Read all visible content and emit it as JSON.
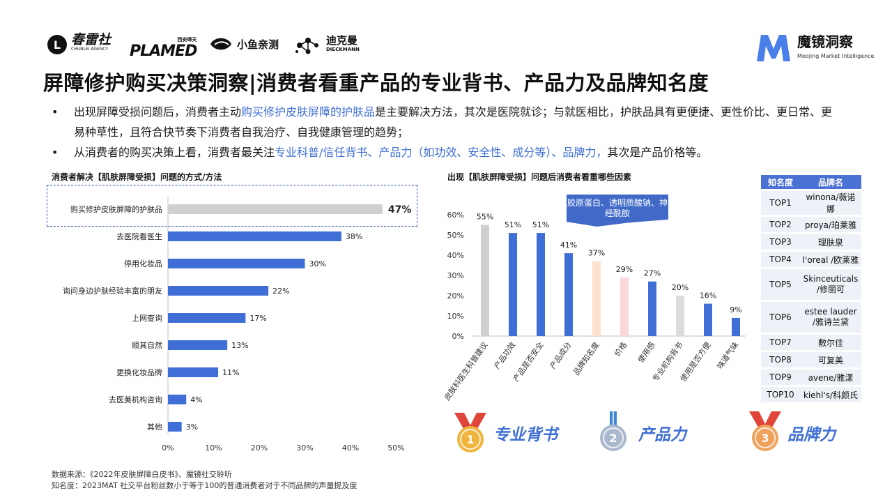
{
  "header": {
    "logos": [
      "春雷社",
      "CHUNLEI AGENCY",
      "PLAMED",
      "西安缔天",
      "小鱼亲测",
      "迪克曼",
      "DIECKMANN"
    ],
    "brand_name": "魔镜洞察",
    "brand_sub": "Moojing Market Intelligence"
  },
  "title": "屏障修护购买决策洞察|消费者看重产品的专业背书、产品力及品牌知名度",
  "bullets": {
    "b1_pre": "出现屏障受损问题后，消费者主动",
    "b1_hl": "购买修护皮肤屏障的护肤品",
    "b1_post": "是主要解决方法，其次是医院就诊；与就医相比，护肤品具有更便捷、更性价比、更日常、更易种草性，且符合快节奏下消费者自我治疗、自我健康管理的趋势；",
    "b2_pre": "从消费者的购买决策上看，消费者最关注",
    "b2_hl": "专业科普/信任背书、产品力（如功效、安全性、成分等）、品牌力，",
    "b2_post": "其次是产品价格等。"
  },
  "chart_data": [
    {
      "type": "bar",
      "orientation": "horizontal",
      "title": "消费者解决【肌肤屏障受损】问题的方式/方法",
      "categories": [
        "购买修护皮肤屏障的护肤品",
        "去医院看医生",
        "停用化妆品",
        "询问身边护肤经验丰富的朋友",
        "上网查询",
        "顺其自然",
        "更换化妆品牌",
        "去医美机构咨询",
        "其他"
      ],
      "values": [
        47,
        38,
        30,
        22,
        17,
        13,
        11,
        4,
        3
      ],
      "value_labels": [
        "47%",
        "38%",
        "30%",
        "22%",
        "17%",
        "13%",
        "11%",
        "4%",
        "3%"
      ],
      "xlim": [
        0,
        50
      ],
      "x_ticks": [
        "0%",
        "10%",
        "20%",
        "30%",
        "40%",
        "50%"
      ],
      "colors": [
        "#d0d0d0",
        "#3f6fd6",
        "#3f6fd6",
        "#3f6fd6",
        "#3f6fd6",
        "#3f6fd6",
        "#3f6fd6",
        "#3f6fd6",
        "#3f6fd6"
      ]
    },
    {
      "type": "bar",
      "orientation": "vertical",
      "title": "出现【肌肤屏障受损】问题后消费者看重哪些因素",
      "categories": [
        "皮肤科医生科普建议",
        "产品功效",
        "产品是否安全",
        "产品成分",
        "品牌知名度",
        "价格",
        "使用感",
        "专业机构背书",
        "使用是否方便",
        "味道气味"
      ],
      "values": [
        55,
        51,
        51,
        41,
        37,
        29,
        27,
        20,
        16,
        9
      ],
      "value_labels": [
        "55%",
        "51%",
        "51%",
        "41%",
        "37%",
        "29%",
        "27%",
        "20%",
        "16%",
        "9%"
      ],
      "ylim": [
        0,
        60
      ],
      "y_ticks": [
        "0%",
        "10%",
        "20%",
        "30%",
        "40%",
        "50%",
        "60%"
      ],
      "colors": [
        "#d0d0d0",
        "#3f6fd6",
        "#3f6fd6",
        "#3f6fd6",
        "#fde3cc",
        "#f9d7da",
        "#3f6fd6",
        "#dcdcdc",
        "#3f6fd6",
        "#3f6fd6"
      ],
      "callout": "胶原蛋白、透明质酸钠、神经酰胺"
    }
  ],
  "brand_table": {
    "headers": [
      "知名度",
      "品牌名"
    ],
    "rows": [
      [
        "TOP1",
        "winona/薇诺娜"
      ],
      [
        "TOP2",
        "proya/珀莱雅"
      ],
      [
        "TOP3",
        "理肤泉"
      ],
      [
        "TOP4",
        "l'oreal /欧莱雅"
      ],
      [
        "TOP5",
        "Skinceuticals /修丽可"
      ],
      [
        "TOP6",
        "estee lauder /雅诗兰黛"
      ],
      [
        "TOP7",
        "敷尔佳"
      ],
      [
        "TOP8",
        "可复美"
      ],
      [
        "TOP9",
        "avene/雅漾"
      ],
      [
        "TOP10",
        "kiehl's/科颜氏"
      ]
    ]
  },
  "medals": [
    {
      "rank": "1",
      "label": "专业背书",
      "color": "#f0b53c",
      "ribbon": "#e0453a"
    },
    {
      "rank": "2",
      "label": "产品力",
      "color": "#a9b8cc",
      "ribbon": "#3f87d6"
    },
    {
      "rank": "3",
      "label": "品牌力",
      "color": "#f0a25a",
      "ribbon": "#e0453a"
    }
  ],
  "footnotes": {
    "source": "数据来源：《2022年皮肤屏障白皮书》、魔镜社交聆听",
    "note": "知名度：2023MAT 社交平台粉丝数小于等于100的普通消费者对于不同品牌的声量提及度"
  }
}
